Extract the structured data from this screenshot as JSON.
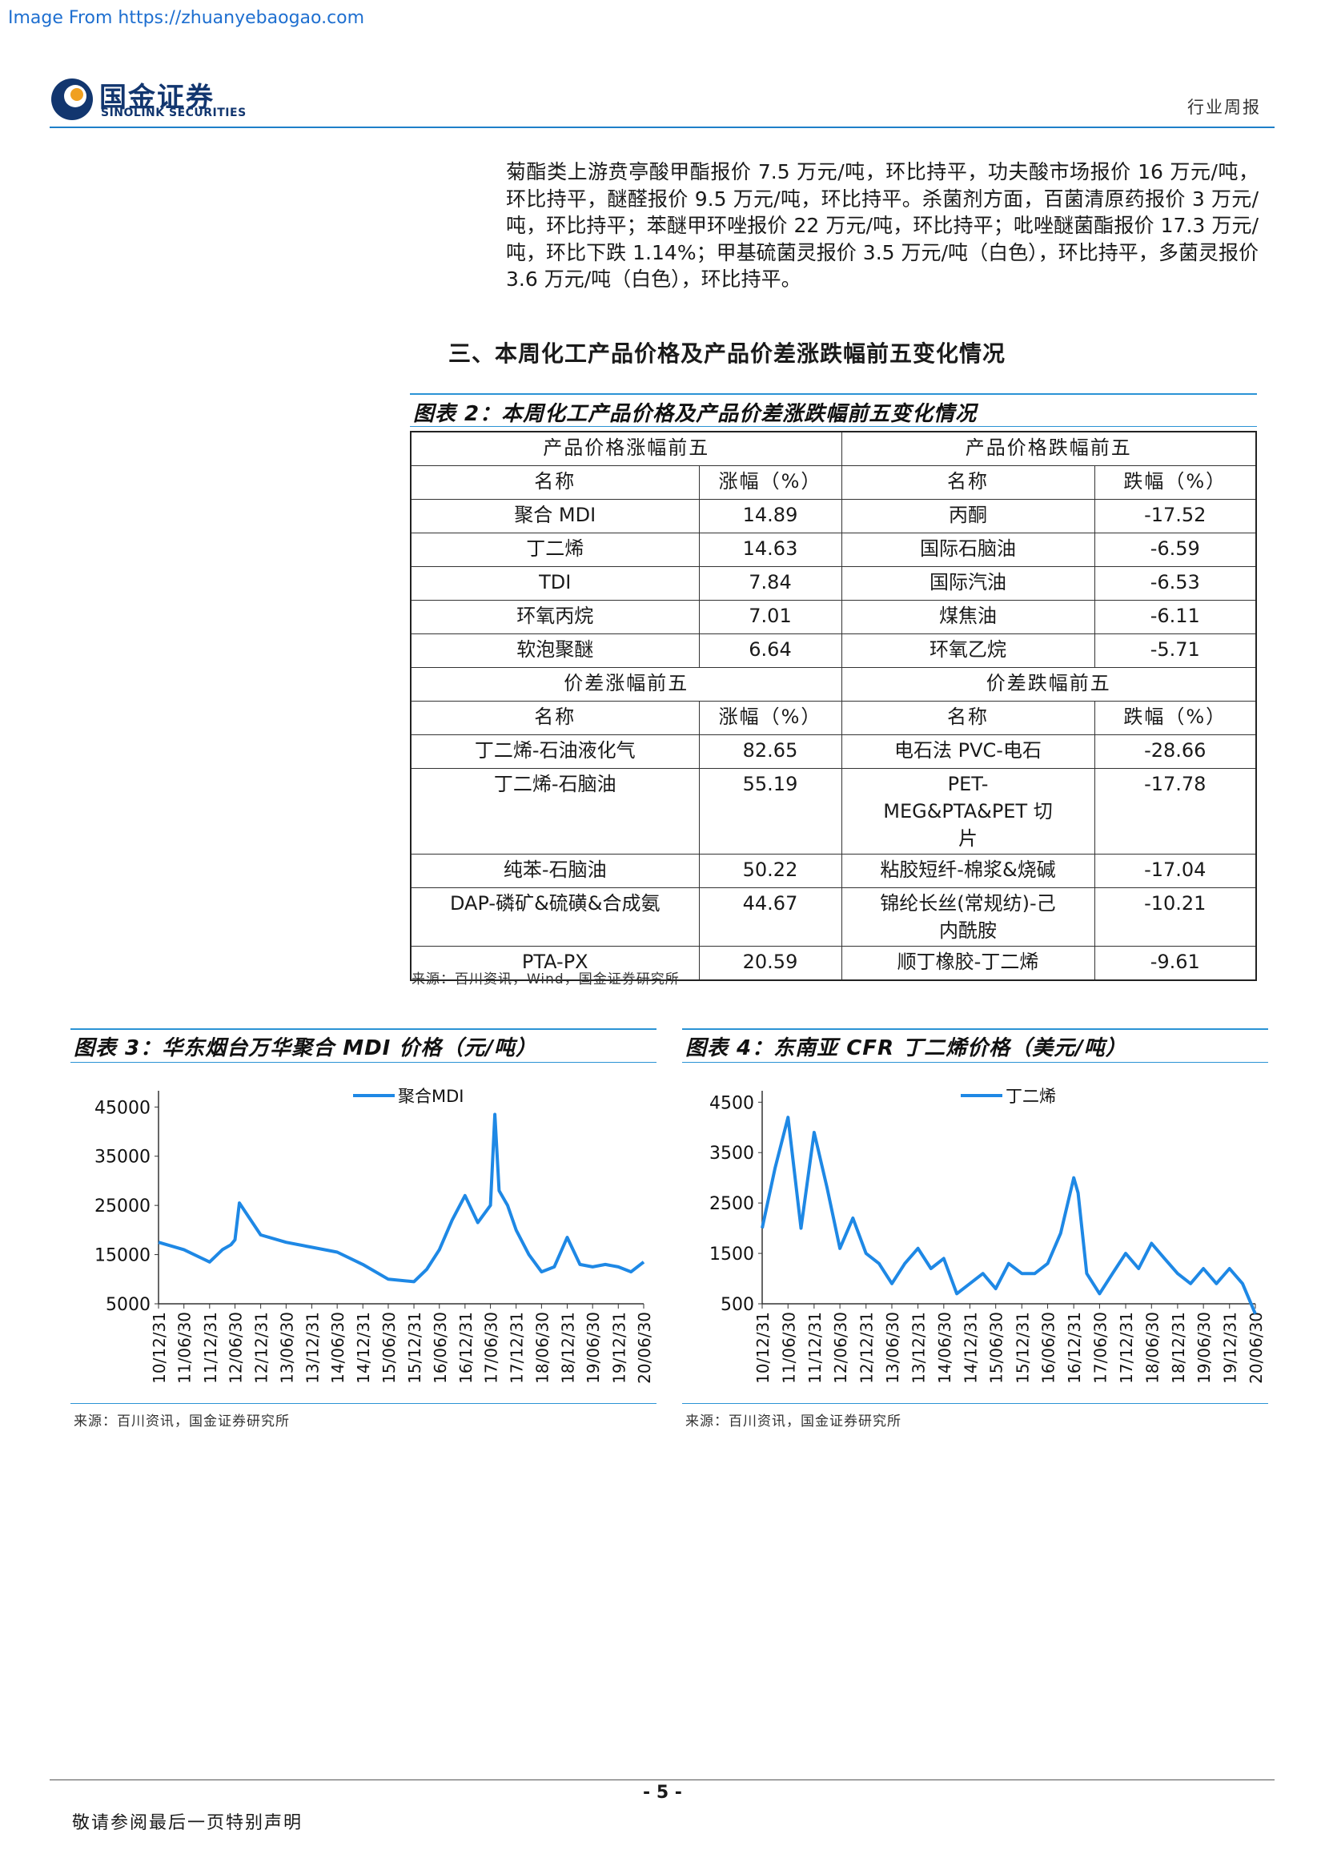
{
  "watermark": "Image From https://zhuanyebaogao.com",
  "header": {
    "logo_cn": "国金证券",
    "logo_en": "SINOLINK SECURITIES",
    "report_type": "行业周报"
  },
  "body_paragraph": "菊酯类上游贲亭酸甲酯报价 7.5 万元/吨，环比持平，功夫酸市场报价 16 万元/吨，环比持平，醚醛报价 9.5 万元/吨，环比持平。杀菌剂方面，百菌清原药报价 3 万元/吨，环比持平；苯醚甲环唑报价 22 万元/吨，环比持平；吡唑醚菌酯报价 17.3 万元/吨，环比下跌 1.14%；甲基硫菌灵报价 3.5 万元/吨（白色），环比持平，多菌灵报价 3.6 万元/吨（白色），环比持平。",
  "section_heading": "三、本周化工产品价格及产品价差涨跌幅前五变化情况",
  "figure2": {
    "title": "图表 2：本周化工产品价格及产品价差涨跌幅前五变化情况",
    "price_up_header": "产品价格涨幅前五",
    "price_down_header": "产品价格跌幅前五",
    "spread_up_header": "价差涨幅前五",
    "spread_down_header": "价差跌幅前五",
    "col_name": "名称",
    "col_up": "涨幅（%）",
    "col_down": "跌幅（%）",
    "price_rows": [
      {
        "up_name": "聚合 MDI",
        "up_val": "14.89",
        "down_name": "丙酮",
        "down_val": "-17.52"
      },
      {
        "up_name": "丁二烯",
        "up_val": "14.63",
        "down_name": "国际石脑油",
        "down_val": "-6.59"
      },
      {
        "up_name": "TDI",
        "up_val": "7.84",
        "down_name": "国际汽油",
        "down_val": "-6.53"
      },
      {
        "up_name": "环氧丙烷",
        "up_val": "7.01",
        "down_name": "煤焦油",
        "down_val": "-6.11"
      },
      {
        "up_name": "软泡聚醚",
        "up_val": "6.64",
        "down_name": "环氧乙烷",
        "down_val": "-5.71"
      }
    ],
    "spread_rows": [
      {
        "up_name": "丁二烯-石油液化气",
        "up_val": "82.65",
        "down_name": "电石法 PVC-电石",
        "down_val": "-28.66"
      },
      {
        "up_name": "丁二烯-石脑油",
        "up_val": "55.19",
        "down_name": "PET-MEG&PTA&PET 切片",
        "down_val": "-17.78"
      },
      {
        "up_name": "纯苯-石脑油",
        "up_val": "50.22",
        "down_name": "粘胶短纤-棉浆&烧碱",
        "down_val": "-17.04"
      },
      {
        "up_name": "DAP-磷矿&硫磺&合成氨",
        "up_val": "44.67",
        "down_name": "锦纶长丝(常规纺)-己内酰胺",
        "down_val": "-10.21"
      },
      {
        "up_name": "PTA-PX",
        "up_val": "20.59",
        "down_name": "顺丁橡胶-丁二烯",
        "down_val": "-9.61"
      }
    ],
    "source": "来源：百川资讯，Wind，国金证券研究所"
  },
  "figure3": {
    "title": "图表 3：华东烟台万华聚合 MDI 价格（元/吨）",
    "source": "来源：百川资讯，国金证券研究所"
  },
  "figure4": {
    "title": "图表 4：东南亚 CFR 丁二烯价格（美元/吨）",
    "source": "来源：百川资讯，国金证券研究所"
  },
  "chart_data": [
    {
      "type": "line",
      "series": [
        {
          "name": "聚合MDI",
          "color": "#1e88e5",
          "x": [
            "2010-12-31",
            "2011-06-30",
            "2011-12-31",
            "2012-03-31",
            "2012-05-31",
            "2012-06-30",
            "2012-07-31",
            "2012-12-31",
            "2013-06-30",
            "2013-12-31",
            "2014-06-30",
            "2014-12-31",
            "2015-06-30",
            "2015-12-31",
            "2016-03-31",
            "2016-06-30",
            "2016-09-30",
            "2016-12-31",
            "2017-03-31",
            "2017-06-30",
            "2017-07-31",
            "2017-08-31",
            "2017-10-31",
            "2017-12-31",
            "2018-03-31",
            "2018-06-30",
            "2018-09-30",
            "2018-12-31",
            "2019-03-31",
            "2019-06-30",
            "2019-09-30",
            "2019-12-31",
            "2020-03-31",
            "2020-06-30"
          ],
          "values": [
            17500,
            16000,
            13500,
            16000,
            17000,
            18000,
            25500,
            19000,
            17500,
            16500,
            15500,
            13000,
            10000,
            9500,
            12000,
            16000,
            22000,
            27000,
            21500,
            25000,
            43500,
            28000,
            25000,
            20000,
            15000,
            11500,
            12500,
            18500,
            13000,
            12500,
            13000,
            12500,
            11500,
            13500
          ]
        }
      ],
      "categories": [
        "10/12/31",
        "11/06/30",
        "11/12/31",
        "12/06/30",
        "12/12/31",
        "13/06/30",
        "13/12/31",
        "14/06/30",
        "14/12/31",
        "15/06/30",
        "15/12/31",
        "16/06/30",
        "16/12/31",
        "17/06/30",
        "17/12/31",
        "18/06/30",
        "18/12/31",
        "19/06/30",
        "19/12/31",
        "20/06/30"
      ],
      "yticks": [
        5000,
        15000,
        25000,
        35000,
        45000
      ],
      "ylim": [
        5000,
        47000
      ],
      "legend": "top-center"
    },
    {
      "type": "line",
      "series": [
        {
          "name": "丁二烯",
          "color": "#1e88e5",
          "x": [
            "2010-12-31",
            "2011-03-31",
            "2011-06-30",
            "2011-09-30",
            "2011-12-31",
            "2012-03-31",
            "2012-06-30",
            "2012-09-30",
            "2012-12-31",
            "2013-03-31",
            "2013-06-30",
            "2013-09-30",
            "2013-12-31",
            "2014-03-31",
            "2014-06-30",
            "2014-09-30",
            "2014-12-31",
            "2015-03-31",
            "2015-06-30",
            "2015-09-30",
            "2015-12-31",
            "2016-03-31",
            "2016-06-30",
            "2016-09-30",
            "2016-12-31",
            "2017-01-31",
            "2017-03-31",
            "2017-06-30",
            "2017-09-30",
            "2017-12-31",
            "2018-03-31",
            "2018-06-30",
            "2018-09-30",
            "2018-12-31",
            "2019-03-31",
            "2019-06-30",
            "2019-09-30",
            "2019-12-31",
            "2020-03-31",
            "2020-06-30"
          ],
          "values": [
            2000,
            3200,
            4200,
            2000,
            3900,
            2800,
            1600,
            2200,
            1500,
            1300,
            900,
            1300,
            1600,
            1200,
            1400,
            700,
            900,
            1100,
            800,
            1300,
            1100,
            1100,
            1300,
            1900,
            3000,
            2700,
            1100,
            700,
            1100,
            1500,
            1200,
            1700,
            1400,
            1100,
            900,
            1200,
            900,
            1200,
            900,
            300
          ]
        }
      ],
      "categories": [
        "10/12/31",
        "11/06/30",
        "11/12/31",
        "12/06/30",
        "12/12/31",
        "13/06/30",
        "13/12/31",
        "14/06/30",
        "14/12/31",
        "15/06/30",
        "15/12/31",
        "16/06/30",
        "16/12/31",
        "17/06/30",
        "17/12/31",
        "18/06/30",
        "18/12/31",
        "19/06/30",
        "19/12/31",
        "20/06/30"
      ],
      "yticks": [
        500,
        1500,
        2500,
        3500,
        4500
      ],
      "ylim": [
        500,
        4600
      ],
      "legend": "top-center"
    }
  ],
  "footer": {
    "page_number": "- 5 -",
    "disclaimer": "敬请参阅最后一页特别声明"
  }
}
